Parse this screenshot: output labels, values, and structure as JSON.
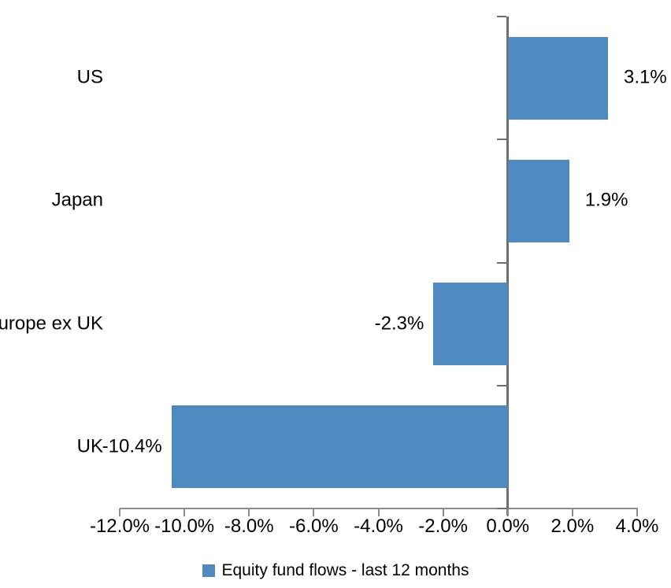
{
  "chart_data": {
    "type": "bar",
    "orientation": "horizontal",
    "title": "",
    "categories": [
      "US",
      "Japan",
      "Europe ex UK",
      "UK"
    ],
    "series": [
      {
        "name": "Equity fund flows - last 12 months",
        "values": [
          3.1,
          1.9,
          -2.3,
          -10.4
        ],
        "data_labels": [
          "3.1%",
          "1.9%",
          "-2.3%",
          "-10.4%"
        ]
      }
    ],
    "xlabel": "",
    "ylabel": "",
    "xlim": [
      -12,
      4
    ],
    "x_ticks": [
      -12,
      -10,
      -8,
      -6,
      -4,
      -2,
      0,
      2,
      4
    ],
    "x_tick_labels": [
      "-12.0%",
      "-10.0%",
      "-8.0%",
      "-6.0%",
      "-4.0%",
      "-2.0%",
      "0.0%",
      "2.0%",
      "4.0%"
    ],
    "grid": "off",
    "legend_position": "bottom",
    "bar_color": "#4E8ABF",
    "x_axis_color": "#8C8C8C",
    "y_axis_color": "#6E6E6E",
    "label_color": "#000000"
  },
  "legend": {
    "swatch_icon": "filled-square",
    "label": "Equity fund flows - last 12 months"
  }
}
